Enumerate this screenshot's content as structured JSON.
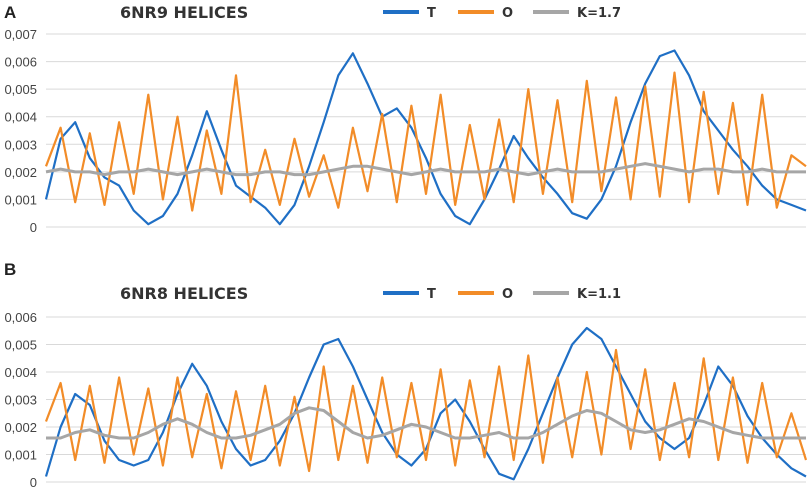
{
  "chart_data": [
    {
      "panel": "A",
      "type": "line",
      "title": "6NR9 HELICES",
      "ylim": [
        0,
        0.007
      ],
      "yticks": [
        "0",
        "0,001",
        "0,002",
        "0,003",
        "0,004",
        "0,005",
        "0,006",
        "0,007"
      ],
      "grid": true,
      "legend": "top-center",
      "series": [
        {
          "name": "T",
          "color": "#1f6fc5",
          "values": [
            0.001,
            0.0032,
            0.0038,
            0.0025,
            0.0018,
            0.0015,
            0.0006,
            0.0001,
            0.0004,
            0.0012,
            0.0026,
            0.0042,
            0.0028,
            0.0015,
            0.0011,
            0.0007,
            0.0001,
            0.0008,
            0.0022,
            0.0038,
            0.0055,
            0.0063,
            0.0052,
            0.004,
            0.0043,
            0.0036,
            0.0025,
            0.0012,
            0.0004,
            0.0001,
            0.001,
            0.0021,
            0.0033,
            0.0025,
            0.0018,
            0.0012,
            0.0005,
            0.0003,
            0.001,
            0.0022,
            0.0038,
            0.0052,
            0.0062,
            0.0064,
            0.0055,
            0.0042,
            0.0035,
            0.0028,
            0.0022,
            0.0015,
            0.001,
            0.0008,
            0.0006
          ]
        },
        {
          "name": "O",
          "color": "#f28c28",
          "values": [
            0.0022,
            0.0036,
            0.0009,
            0.0034,
            0.0008,
            0.0038,
            0.0012,
            0.0048,
            0.001,
            0.004,
            0.0006,
            0.0035,
            0.0012,
            0.0055,
            0.0009,
            0.0028,
            0.0008,
            0.0032,
            0.0011,
            0.0026,
            0.0007,
            0.0036,
            0.0013,
            0.0041,
            0.0009,
            0.0044,
            0.0012,
            0.0048,
            0.0008,
            0.0037,
            0.001,
            0.0039,
            0.0009,
            0.005,
            0.0012,
            0.0046,
            0.0009,
            0.0053,
            0.0013,
            0.0047,
            0.001,
            0.0051,
            0.0011,
            0.0056,
            0.0009,
            0.0049,
            0.0012,
            0.0045,
            0.0008,
            0.0048,
            0.0007,
            0.0026,
            0.0022
          ]
        },
        {
          "name": "K=1.7",
          "color": "#a6a6a6",
          "values": [
            0.002,
            0.0021,
            0.002,
            0.002,
            0.0019,
            0.002,
            0.002,
            0.0021,
            0.002,
            0.0019,
            0.002,
            0.0021,
            0.002,
            0.0019,
            0.0019,
            0.002,
            0.002,
            0.0019,
            0.0019,
            0.002,
            0.0021,
            0.0022,
            0.0022,
            0.0021,
            0.002,
            0.0019,
            0.002,
            0.0021,
            0.002,
            0.002,
            0.002,
            0.0021,
            0.002,
            0.0019,
            0.002,
            0.0021,
            0.002,
            0.002,
            0.002,
            0.0021,
            0.0022,
            0.0023,
            0.0022,
            0.0021,
            0.002,
            0.0021,
            0.0021,
            0.002,
            0.002,
            0.0021,
            0.002,
            0.002,
            0.002
          ]
        }
      ]
    },
    {
      "panel": "B",
      "type": "line",
      "title": "6NR8  HELICES",
      "ylim": [
        0,
        0.006
      ],
      "yticks": [
        "0",
        "0,001",
        "0,002",
        "0,003",
        "0,004",
        "0,005",
        "0,006"
      ],
      "grid": true,
      "legend": "top-center",
      "series": [
        {
          "name": "T",
          "color": "#1f6fc5",
          "values": [
            0.0002,
            0.002,
            0.0032,
            0.0028,
            0.0015,
            0.0008,
            0.0006,
            0.0008,
            0.0018,
            0.0032,
            0.0043,
            0.0035,
            0.0022,
            0.0012,
            0.0006,
            0.0008,
            0.0015,
            0.0025,
            0.0038,
            0.005,
            0.0052,
            0.0042,
            0.003,
            0.0018,
            0.001,
            0.0006,
            0.0012,
            0.0025,
            0.003,
            0.0022,
            0.0012,
            0.0003,
            0.0001,
            0.0012,
            0.0025,
            0.0038,
            0.005,
            0.0056,
            0.0052,
            0.0042,
            0.0032,
            0.0022,
            0.0016,
            0.0012,
            0.0016,
            0.0028,
            0.0042,
            0.0035,
            0.0024,
            0.0016,
            0.001,
            0.0005,
            0.0002
          ]
        },
        {
          "name": "O",
          "color": "#f28c28",
          "values": [
            0.0022,
            0.0036,
            0.0008,
            0.0035,
            0.0007,
            0.0038,
            0.001,
            0.0034,
            0.0006,
            0.0038,
            0.0009,
            0.0032,
            0.0005,
            0.0033,
            0.0008,
            0.0035,
            0.0006,
            0.0031,
            0.0004,
            0.0042,
            0.0008,
            0.0035,
            0.0007,
            0.0038,
            0.0009,
            0.0036,
            0.0008,
            0.0041,
            0.0006,
            0.0037,
            0.0009,
            0.0042,
            0.0008,
            0.0046,
            0.0007,
            0.0038,
            0.0009,
            0.004,
            0.001,
            0.0048,
            0.0012,
            0.0041,
            0.0008,
            0.0036,
            0.0009,
            0.0045,
            0.0008,
            0.0038,
            0.0007,
            0.0036,
            0.0009,
            0.0025,
            0.0008
          ]
        },
        {
          "name": "K=1.1",
          "color": "#a6a6a6",
          "values": [
            0.0016,
            0.0016,
            0.0018,
            0.0019,
            0.0017,
            0.0016,
            0.0016,
            0.0018,
            0.0021,
            0.0023,
            0.0021,
            0.0018,
            0.0016,
            0.0016,
            0.0017,
            0.0019,
            0.0021,
            0.0025,
            0.0027,
            0.0026,
            0.0022,
            0.0018,
            0.0016,
            0.0017,
            0.0019,
            0.0021,
            0.002,
            0.0018,
            0.0016,
            0.0016,
            0.0017,
            0.0018,
            0.0016,
            0.0016,
            0.0018,
            0.0021,
            0.0024,
            0.0026,
            0.0025,
            0.0022,
            0.0019,
            0.0018,
            0.0019,
            0.0021,
            0.0023,
            0.0022,
            0.002,
            0.0018,
            0.0017,
            0.0016,
            0.0016,
            0.0016,
            0.0016
          ]
        }
      ]
    }
  ]
}
